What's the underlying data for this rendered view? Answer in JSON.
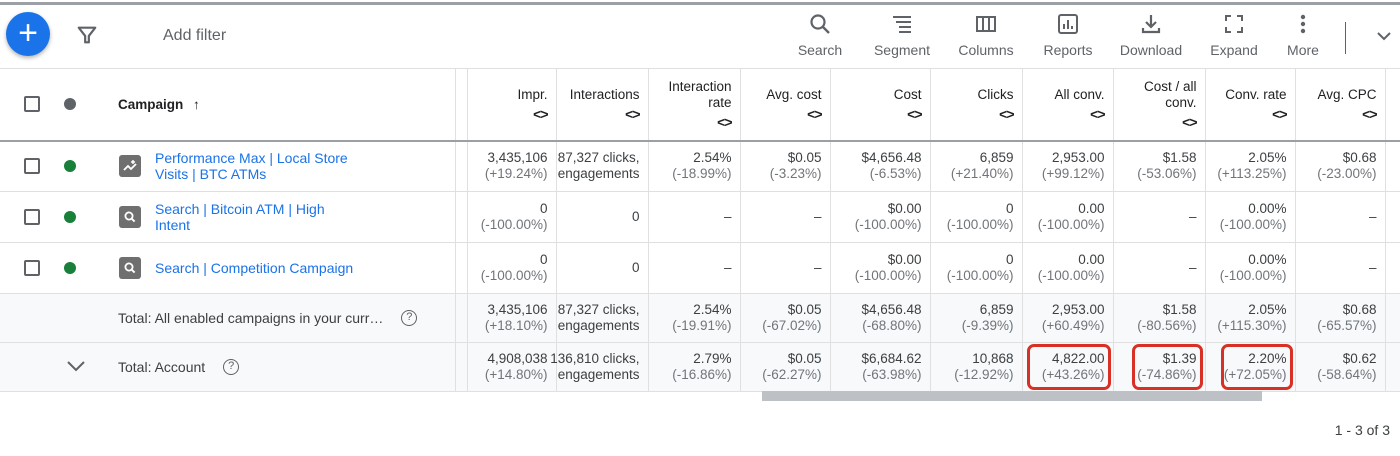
{
  "toolbar": {
    "add_filter": "Add filter",
    "tools": [
      {
        "label": "Search",
        "icon": "search-icon"
      },
      {
        "label": "Segment",
        "icon": "segment-icon"
      },
      {
        "label": "Columns",
        "icon": "columns-icon"
      },
      {
        "label": "Reports",
        "icon": "reports-icon"
      },
      {
        "label": "Download",
        "icon": "download-icon"
      },
      {
        "label": "Expand",
        "icon": "expand-icon"
      },
      {
        "label": "More",
        "icon": "more-icon"
      }
    ]
  },
  "colors": {
    "accent": "#1a73e8",
    "enabled": "#188038",
    "highlight": "#d93025"
  },
  "header": {
    "campaign": "Campaign",
    "sort_arrow": "↑",
    "sort_toggle": "<>",
    "metrics": [
      "Impr.",
      "Interactions",
      "Interaction rate",
      "Avg. cost",
      "Cost",
      "Clicks",
      "All conv.",
      "Cost / all conv.",
      "Conv. rate",
      "Avg. CPC"
    ]
  },
  "rows": [
    {
      "type": "campaign",
      "name": "Performance Max | Local Store Visits | BTC ATMs",
      "icon": "performance-max-icon",
      "status": "enabled",
      "cells": [
        [
          "3,435,106",
          "(+19.24%)"
        ],
        [
          "87,327 clicks, engagements",
          ""
        ],
        [
          "2.54%",
          "(-18.99%)"
        ],
        [
          "$0.05",
          "(-3.23%)"
        ],
        [
          "$4,656.48",
          "(-6.53%)"
        ],
        [
          "6,859",
          "(+21.40%)"
        ],
        [
          "2,953.00",
          "(+99.12%)"
        ],
        [
          "$1.58",
          "(-53.06%)"
        ],
        [
          "2.05%",
          "(+113.25%)"
        ],
        [
          "$0.68",
          "(-23.00%)"
        ]
      ]
    },
    {
      "type": "campaign",
      "name": "Search | Bitcoin ATM | High Intent",
      "icon": "search-campaign-icon",
      "status": "enabled",
      "cells": [
        [
          "0",
          "(-100.00%)"
        ],
        [
          "0",
          ""
        ],
        [
          "–",
          ""
        ],
        [
          "–",
          ""
        ],
        [
          "$0.00",
          "(-100.00%)"
        ],
        [
          "0",
          "(-100.00%)"
        ],
        [
          "0.00",
          "(-100.00%)"
        ],
        [
          "–",
          ""
        ],
        [
          "0.00%",
          "(-100.00%)"
        ],
        [
          "–",
          ""
        ]
      ]
    },
    {
      "type": "campaign",
      "name": "Search | Competition Campaign",
      "icon": "search-campaign-icon",
      "status": "enabled",
      "cells": [
        [
          "0",
          "(-100.00%)"
        ],
        [
          "0",
          ""
        ],
        [
          "–",
          ""
        ],
        [
          "–",
          ""
        ],
        [
          "$0.00",
          "(-100.00%)"
        ],
        [
          "0",
          "(-100.00%)"
        ],
        [
          "0.00",
          "(-100.00%)"
        ],
        [
          "–",
          ""
        ],
        [
          "0.00%",
          "(-100.00%)"
        ],
        [
          "–",
          ""
        ]
      ]
    },
    {
      "type": "total",
      "name": "Total: All enabled campaigns in your curr…",
      "cells": [
        [
          "3,435,106",
          "(+18.10%)"
        ],
        [
          "87,327 clicks, engagements",
          ""
        ],
        [
          "2.54%",
          "(-19.91%)"
        ],
        [
          "$0.05",
          "(-67.02%)"
        ],
        [
          "$4,656.48",
          "(-68.80%)"
        ],
        [
          "6,859",
          "(-9.39%)"
        ],
        [
          "2,953.00",
          "(+60.49%)"
        ],
        [
          "$1.58",
          "(-80.56%)"
        ],
        [
          "2.05%",
          "(+115.30%)"
        ],
        [
          "$0.68",
          "(-65.57%)"
        ]
      ]
    },
    {
      "type": "account",
      "name": "Total: Account",
      "highlighted": [
        6,
        7,
        8
      ],
      "cells": [
        [
          "4,908,038",
          "(+14.80%)"
        ],
        [
          "136,810 clicks, engagements",
          ""
        ],
        [
          "2.79%",
          "(-16.86%)"
        ],
        [
          "$0.05",
          "(-62.27%)"
        ],
        [
          "$6,684.62",
          "(-63.98%)"
        ],
        [
          "10,868",
          "(-12.92%)"
        ],
        [
          "4,822.00",
          "(+43.26%)"
        ],
        [
          "$1.39",
          "(-74.86%)"
        ],
        [
          "2.20%",
          "(+72.05%)"
        ],
        [
          "$0.62",
          "(-58.64%)"
        ]
      ]
    }
  ],
  "help_glyph": "?",
  "pagination": "1 - 3 of 3"
}
